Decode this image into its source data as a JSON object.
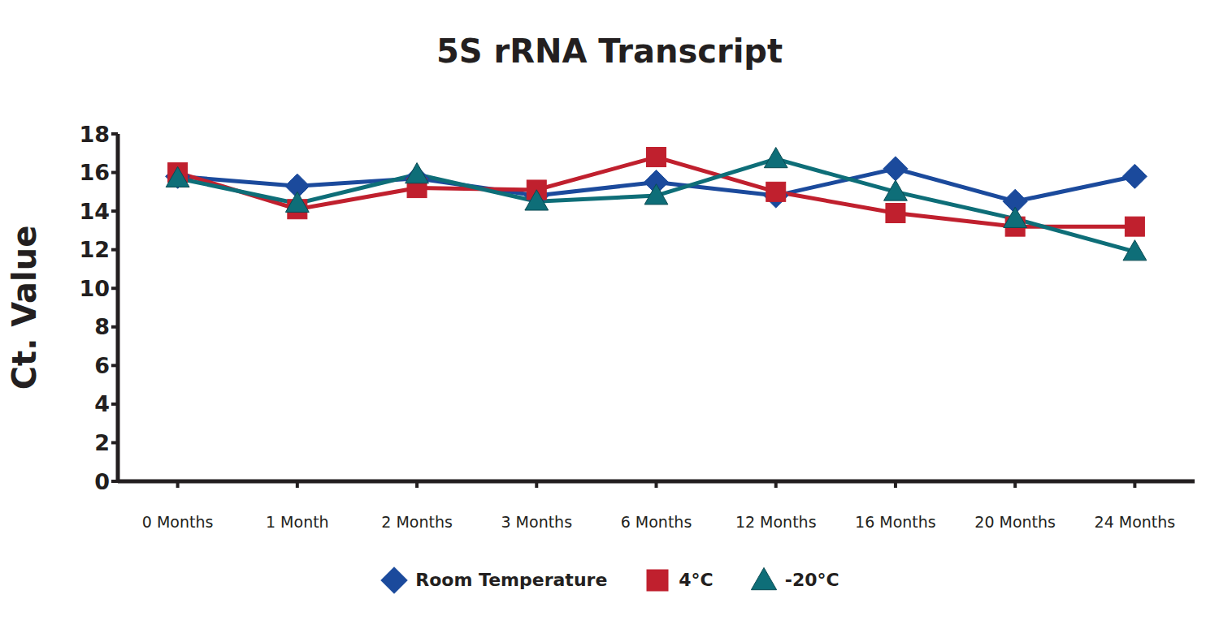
{
  "chart_data": {
    "type": "line",
    "title": "5S rRNA Transcript",
    "y_label": "Ct. Value",
    "categories": [
      "0 Months",
      "1 Month",
      "2 Months",
      "3 Months",
      "6 Months",
      "12 Months",
      "16 Months",
      "20 Months",
      "24 Months"
    ],
    "series": [
      {
        "name": "Room Temperature",
        "color": "#1b4a9c",
        "marker": "diamond",
        "values": [
          15.8,
          15.3,
          15.7,
          14.8,
          15.5,
          14.8,
          16.2,
          14.5,
          15.8
        ]
      },
      {
        "name": "4°C",
        "color": "#c0202e",
        "marker": "square",
        "values": [
          16.0,
          14.1,
          15.2,
          15.1,
          16.8,
          15.0,
          13.9,
          13.2,
          13.2
        ]
      },
      {
        "name": "-20°C",
        "color": "#0e6e78",
        "marker": "triangle",
        "values": [
          15.7,
          14.4,
          15.9,
          14.5,
          14.8,
          16.7,
          15.0,
          13.6,
          11.9
        ]
      }
    ],
    "ylim": [
      0,
      18
    ],
    "yticks": [
      0,
      2,
      4,
      6,
      8,
      10,
      12,
      14,
      16,
      18
    ],
    "grid": false,
    "legend": "bottom"
  }
}
